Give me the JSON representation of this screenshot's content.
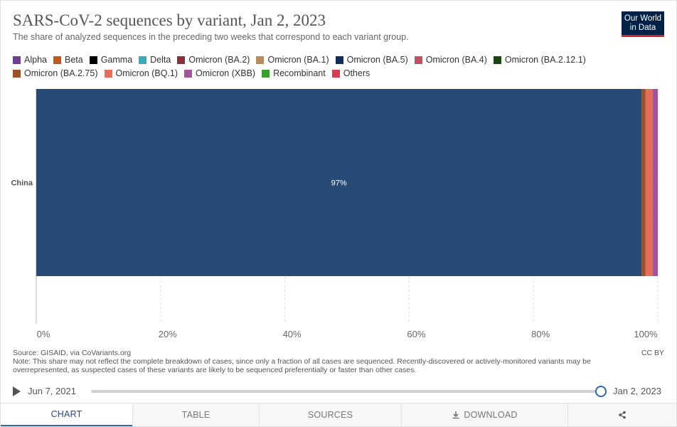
{
  "header": {
    "title": "SARS-CoV-2 sequences by variant, Jan 2, 2023",
    "subtitle": "The share of analyzed sequences in the preceding two weeks that correspond to each variant group.",
    "logo_line1": "Our World",
    "logo_line2": "in Data"
  },
  "legend": [
    {
      "label": "Alpha",
      "color": "#6d3e91"
    },
    {
      "label": "Beta",
      "color": "#c05917"
    },
    {
      "label": "Gamma",
      "color": "#000000"
    },
    {
      "label": "Delta",
      "color": "#38aaba"
    },
    {
      "label": "Omicron (BA.2)",
      "color": "#883039"
    },
    {
      "label": "Omicron (BA.1)",
      "color": "#b88b5f"
    },
    {
      "label": "Omicron (BA.5)",
      "color": "#0f2e5a"
    },
    {
      "label": "Omicron (BA.4)",
      "color": "#c15065"
    },
    {
      "label": "Omicron (BA.2.12.1)",
      "color": "#18470f"
    },
    {
      "label": "Omicron (BA.2.75)",
      "color": "#9a5129"
    },
    {
      "label": "Omicron (BQ.1)",
      "color": "#e56e5a"
    },
    {
      "label": "Omicron (XBB)",
      "color": "#a2559c"
    },
    {
      "label": "Recombinant",
      "color": "#3e9d30"
    },
    {
      "label": "Others",
      "color": "#d73c50"
    }
  ],
  "chart_data": {
    "type": "bar",
    "orientation": "horizontal",
    "stacked": true,
    "categories": [
      "China"
    ],
    "xlim": [
      0,
      100
    ],
    "x_ticks": [
      "0%",
      "20%",
      "40%",
      "60%",
      "80%",
      "100%"
    ],
    "grid": true,
    "series": [
      {
        "name": "Omicron (BA.5)",
        "values": [
          97.4
        ],
        "color": "#284a76",
        "label": "97%"
      },
      {
        "name": "Omicron (BA.2.75)",
        "values": [
          0.6
        ],
        "color": "#9a5129",
        "label": ""
      },
      {
        "name": "Omicron (BQ.1)",
        "values": [
          1.2
        ],
        "color": "#e56e5a",
        "label": ""
      },
      {
        "name": "Omicron (XBB)",
        "values": [
          0.8
        ],
        "color": "#a2559c",
        "label": ""
      }
    ]
  },
  "footer": {
    "source": "Source: GISAID, via CoVariants.org",
    "note": "Note: This share may not reflect the complete breakdown of cases, since only a fraction of all cases are sequenced. Recently-discovered or actively-monitored variants may be overrepresented, as suspected cases of these variants are likely to be sequenced preferentially or faster than other cases.",
    "license": "CC BY"
  },
  "timeline": {
    "start_date": "Jun 7, 2021",
    "end_date": "Jan 2, 2023",
    "position": 1.0
  },
  "tabs": [
    {
      "label": "CHART",
      "active": true
    },
    {
      "label": "TABLE"
    },
    {
      "label": "SOURCES"
    },
    {
      "label": "DOWNLOAD"
    },
    {
      "label": ""
    }
  ]
}
